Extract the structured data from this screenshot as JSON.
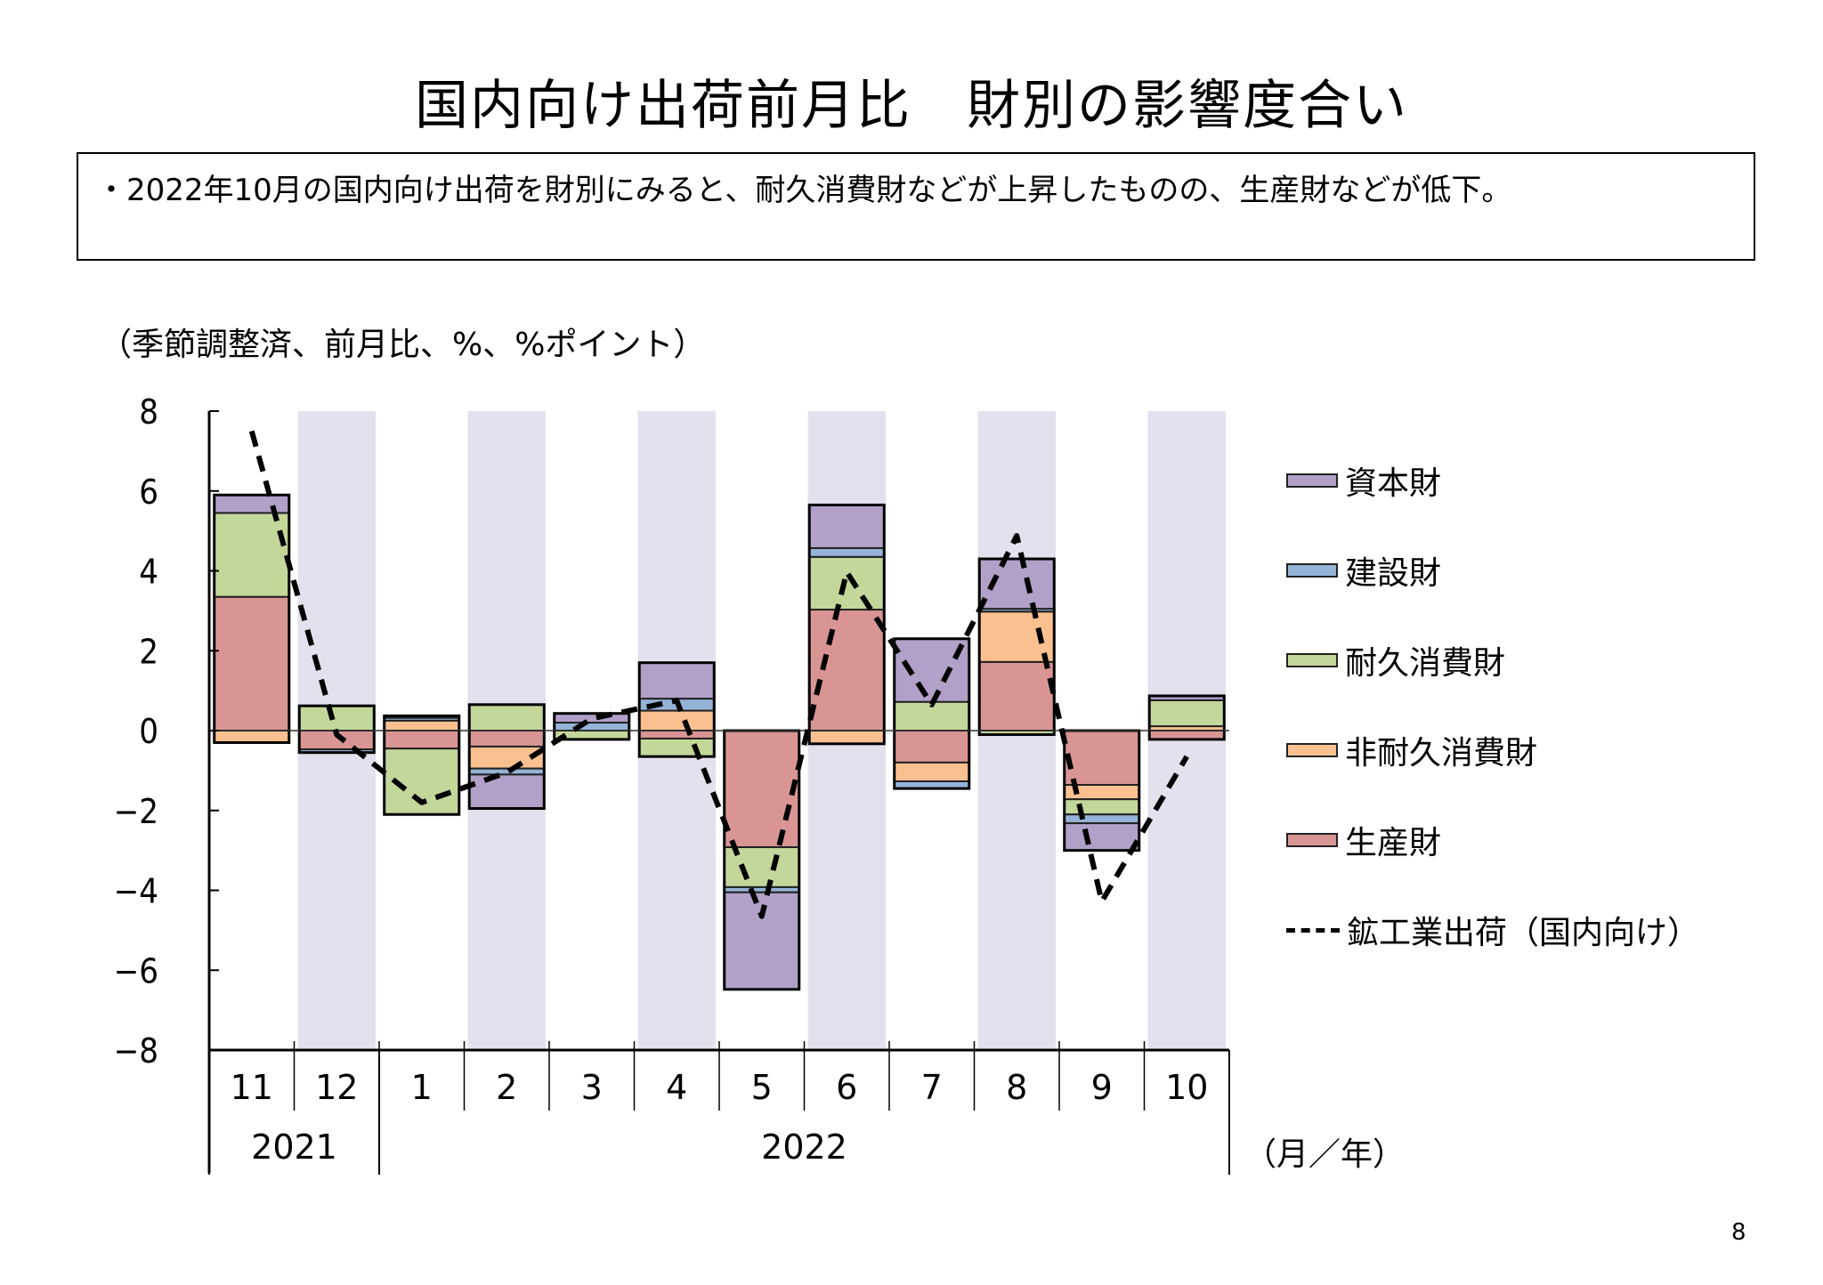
{
  "title": "国内向け出荷前月比　財別の影響度合い",
  "summary": "・2022年10月の国内向け出荷を財別にみると、耐久消費財などが上昇したものの、生産財などが低下。",
  "unit_label": "（季節調整済、前月比、%、%ポイント）",
  "x_unit_label": "（月／年）",
  "page_number": "8",
  "chart_data": {
    "type": "bar",
    "subtype": "stacked bar with line",
    "title": "国内向け出荷前月比　財別の影響度合い",
    "ylabel": "（季節調整済、前月比、%、%ポイント）",
    "xlabel": "（月／年）",
    "ylim": [
      -8,
      8
    ],
    "yticks": [
      8,
      6,
      4,
      2,
      0,
      -2,
      -4,
      -6,
      -8
    ],
    "ytick_labels": [
      "8",
      "6",
      "4",
      "2",
      "0",
      "−2",
      "−4",
      "−6",
      "−8"
    ],
    "categories": [
      "11",
      "12",
      "1",
      "2",
      "3",
      "4",
      "5",
      "6",
      "7",
      "8",
      "9",
      "10"
    ],
    "year_groups": [
      {
        "label": "2021",
        "start": 0,
        "count": 2
      },
      {
        "label": "2022",
        "start": 2,
        "count": 10
      }
    ],
    "shaded_categories": [
      1,
      3,
      5,
      7,
      9,
      11
    ],
    "shade_color": "#e4e0ee",
    "legend_position": "right",
    "series": [
      {
        "name": "生産財",
        "color": "#d99594",
        "values": [
          3.35,
          -0.47,
          -0.45,
          -0.4,
          0.0,
          -0.2,
          -2.92,
          3.03,
          -0.8,
          1.72,
          -1.36,
          -0.22
        ]
      },
      {
        "name": "非耐久消費財",
        "color": "#fac090",
        "values": [
          -0.3,
          0.0,
          0.25,
          -0.55,
          0.0,
          0.5,
          0.0,
          -0.33,
          -0.47,
          1.26,
          -0.36,
          0.11
        ]
      },
      {
        "name": "耐久消費財",
        "color": "#c4d79b",
        "values": [
          2.1,
          0.62,
          -1.65,
          0.65,
          -0.22,
          -0.45,
          -1.0,
          1.32,
          0.72,
          -0.1,
          -0.38,
          0.65
        ]
      },
      {
        "name": "建設財",
        "color": "#95b3d7",
        "values": [
          0.0,
          -0.08,
          0.07,
          -0.15,
          0.2,
          0.3,
          -0.13,
          0.22,
          -0.18,
          0.07,
          -0.22,
          0.0
        ]
      },
      {
        "name": "資本財",
        "color": "#b1a0c7",
        "values": [
          0.45,
          0.0,
          0.05,
          -0.85,
          0.23,
          0.9,
          -2.43,
          1.08,
          1.58,
          1.25,
          -0.68,
          0.11
        ]
      }
    ],
    "line": {
      "name": "鉱工業出荷（国内向け）",
      "style": "dashed",
      "color": "#000000",
      "values": [
        7.5,
        -0.1,
        -1.8,
        -1.05,
        0.3,
        0.75,
        -4.65,
        3.97,
        0.65,
        4.88,
        -4.28,
        -0.65
      ]
    },
    "legend": [
      {
        "label": "資本財",
        "color": "#b1a0c7",
        "kind": "box"
      },
      {
        "label": "建設財",
        "color": "#95b3d7",
        "kind": "box"
      },
      {
        "label": "耐久消費財",
        "color": "#c4d79b",
        "kind": "box"
      },
      {
        "label": "非耐久消費財",
        "color": "#fac090",
        "kind": "box"
      },
      {
        "label": "生産財",
        "color": "#d99594",
        "kind": "box"
      },
      {
        "label": "鉱工業出荷（国内向け）",
        "color": "#000000",
        "kind": "dash"
      }
    ]
  }
}
